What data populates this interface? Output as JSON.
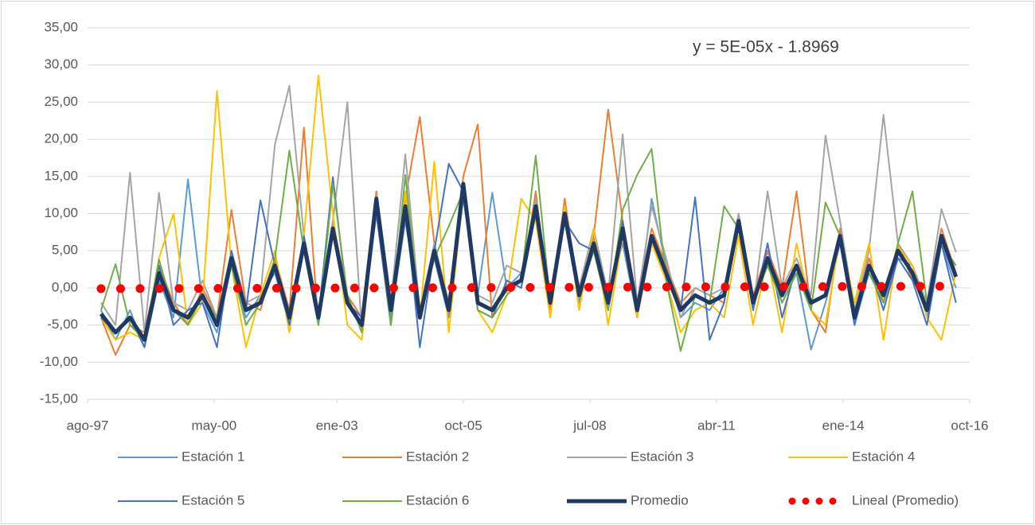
{
  "chart_data": {
    "type": "line",
    "annotation": "y = 5E-05x - 1.8969",
    "x": [
      35750,
      35865,
      35980,
      36095,
      36210,
      36325,
      36440,
      36555,
      36670,
      36785,
      36900,
      37015,
      37130,
      37245,
      37360,
      37475,
      37590,
      37705,
      37820,
      37935,
      38050,
      38165,
      38280,
      38395,
      38510,
      38625,
      38740,
      38855,
      38970,
      39085,
      39200,
      39315,
      39430,
      39545,
      39660,
      39775,
      39890,
      40005,
      40120,
      40235,
      40350,
      40465,
      40580,
      40695,
      40810,
      40925,
      41040,
      41155,
      41270,
      41385,
      41500,
      41615,
      41730,
      41845,
      41960,
      42075,
      42190,
      42305,
      42420,
      42535
    ],
    "xlim": [
      35643,
      42644
    ],
    "xticks": [
      {
        "value": 35643,
        "label": "ago-97"
      },
      {
        "value": 36647,
        "label": "may-00"
      },
      {
        "value": 37622,
        "label": "ene-03"
      },
      {
        "value": 38626,
        "label": "oct-05"
      },
      {
        "value": 39630,
        "label": "jul-08"
      },
      {
        "value": 40634,
        "label": "abr-11"
      },
      {
        "value": 41640,
        "label": "ene-14"
      },
      {
        "value": 42644,
        "label": "oct-16"
      }
    ],
    "ylim": [
      -15,
      35
    ],
    "yticks": [
      {
        "value": 35,
        "label": "35,00"
      },
      {
        "value": 30,
        "label": "30,00"
      },
      {
        "value": 25,
        "label": "25,00"
      },
      {
        "value": 20,
        "label": "20,00"
      },
      {
        "value": 15,
        "label": "15,00"
      },
      {
        "value": 10,
        "label": "10,00"
      },
      {
        "value": 5,
        "label": "5,00"
      },
      {
        "value": 0,
        "label": "0,00"
      },
      {
        "value": -5,
        "label": "-5,00"
      },
      {
        "value": -10,
        "label": "-10,00"
      },
      {
        "value": -15,
        "label": "-15,00"
      }
    ],
    "grid": true,
    "legend": "bottom",
    "series": [
      {
        "name": "Estación 1",
        "color": "#5b9bd5",
        "width": 2,
        "values": [
          -3,
          -7,
          -3,
          -8,
          1,
          -4,
          14.6,
          -2,
          -6,
          3,
          -4,
          -1,
          2,
          -5,
          5,
          -3,
          7,
          -1,
          -6,
          10,
          -4,
          9,
          -3,
          4,
          -4,
          12,
          -1,
          12.8,
          0,
          2,
          10,
          -3,
          9,
          -2,
          7,
          -1,
          6,
          -4,
          12,
          3,
          -4,
          -2,
          -3,
          0,
          8,
          -3,
          5,
          -2,
          2,
          -8.3,
          -2,
          6,
          -5,
          2,
          -2,
          4,
          3,
          -4,
          6,
          0
        ]
      },
      {
        "name": "Estación 2",
        "color": "#ed7d31",
        "width": 2,
        "values": [
          -4,
          -9,
          -5,
          -6,
          3,
          -2,
          -5,
          0,
          -4,
          10.5,
          -2,
          -3,
          4,
          -3,
          21.6,
          -5,
          9,
          -1,
          -4,
          13,
          -2,
          12,
          23,
          6,
          -2,
          15,
          22,
          -4,
          1,
          0,
          13,
          -3,
          12,
          -1,
          7,
          24,
          9,
          -2,
          8,
          3,
          -2,
          0,
          -1,
          -2,
          10,
          -1,
          5,
          0,
          13,
          -3,
          -6,
          8,
          -3,
          4,
          -2,
          6,
          1,
          -2,
          8,
          2
        ]
      },
      {
        "name": "Estación 3",
        "color": "#a5a5a5",
        "width": 2,
        "values": [
          -2,
          -5,
          15.5,
          -6,
          12.8,
          -2,
          -3,
          1,
          -4,
          5,
          -2,
          -1,
          19.3,
          27.2,
          7,
          -3,
          9,
          25,
          -6,
          11,
          -2,
          18,
          -3,
          6,
          -2,
          13,
          -1,
          -2,
          3,
          2,
          12,
          -1,
          11,
          0,
          8,
          -1,
          20.7,
          -2,
          11,
          4,
          -4,
          0,
          -1,
          0,
          10,
          -3,
          13,
          0,
          4,
          -1,
          20.5,
          9,
          -3,
          5,
          23.3,
          6,
          3,
          -2,
          10.6,
          4.8
        ]
      },
      {
        "name": "Estación 4",
        "color": "#ffc000",
        "width": 2,
        "values": [
          -4,
          -7,
          -6,
          -7,
          4,
          10,
          -5,
          -2,
          26.5,
          3,
          -8,
          -1,
          5,
          -6,
          7,
          28.6,
          10,
          -5,
          -7,
          11,
          -5,
          13,
          -4,
          17,
          -6,
          13,
          -3,
          -6,
          -1,
          12,
          9,
          -4,
          11,
          -3,
          8,
          -5,
          7,
          -4,
          6,
          1,
          -6,
          -3,
          -2,
          -4,
          7,
          -5,
          4,
          -6,
          6,
          -3,
          -5,
          7,
          -2,
          6,
          -7,
          5.5,
          3,
          -4,
          -7,
          2
        ]
      },
      {
        "name": "Estación 5",
        "color": "#4472c4",
        "width": 2,
        "values": [
          -4,
          -6,
          -4,
          -8,
          3,
          -5,
          -3,
          -2,
          -8,
          5,
          -3,
          11.8,
          3,
          -5,
          7,
          -4,
          14.9,
          -2,
          -4,
          10,
          -5,
          11,
          -8,
          5,
          16.7,
          13,
          -3,
          -4,
          1,
          0,
          10,
          -2,
          9,
          6,
          5,
          -3,
          9,
          -3,
          7,
          2,
          -3,
          12.2,
          -7,
          -2,
          9,
          -3,
          6,
          -4,
          3,
          -2,
          -1,
          7,
          -5,
          3,
          -3,
          4,
          1,
          -5,
          6,
          -2
        ]
      },
      {
        "name": "Estación 6",
        "color": "#70ad47",
        "width": 2,
        "values": [
          -3,
          3.2,
          -5,
          -7,
          3.8,
          -3,
          -5,
          -1,
          -4,
          3,
          -5,
          -2,
          4,
          18.5,
          5,
          -5,
          14,
          -1,
          -6,
          12,
          -5,
          15.2,
          -4,
          4,
          8.3,
          13,
          -3,
          -4,
          -1,
          1,
          17.8,
          -2,
          10,
          -1,
          5,
          -3,
          10.5,
          15.2,
          18.7,
          1,
          -8.5,
          -1,
          -2,
          11,
          8,
          -2,
          3,
          -2,
          2,
          -3,
          11.5,
          7,
          -3,
          2,
          -2,
          6,
          13,
          -2,
          6,
          3
        ]
      },
      {
        "name": "Promedio",
        "color": "#1f3864",
        "width": 5,
        "values": [
          -3.5,
          -6,
          -4,
          -7,
          2,
          -3,
          -4,
          -1,
          -5,
          4,
          -3,
          -2,
          3,
          -4,
          6,
          -4,
          8,
          -2,
          -5,
          12,
          -3,
          11,
          -4,
          5,
          -3,
          14,
          -2,
          -3,
          0,
          1,
          11,
          -2,
          10,
          -1,
          6,
          -2,
          8,
          -3,
          7,
          2,
          -3,
          -1,
          -2,
          -1,
          9,
          -2,
          4,
          -1,
          3,
          -2,
          -1,
          7,
          -4,
          3,
          -1,
          5,
          2,
          -3,
          7,
          1.5
        ]
      }
    ],
    "trendline": {
      "name": "Lineal (Promedio)",
      "color": "#ff0000",
      "x": [
        35750,
        42535
      ],
      "values": [
        -0.11,
        0.23
      ]
    }
  }
}
